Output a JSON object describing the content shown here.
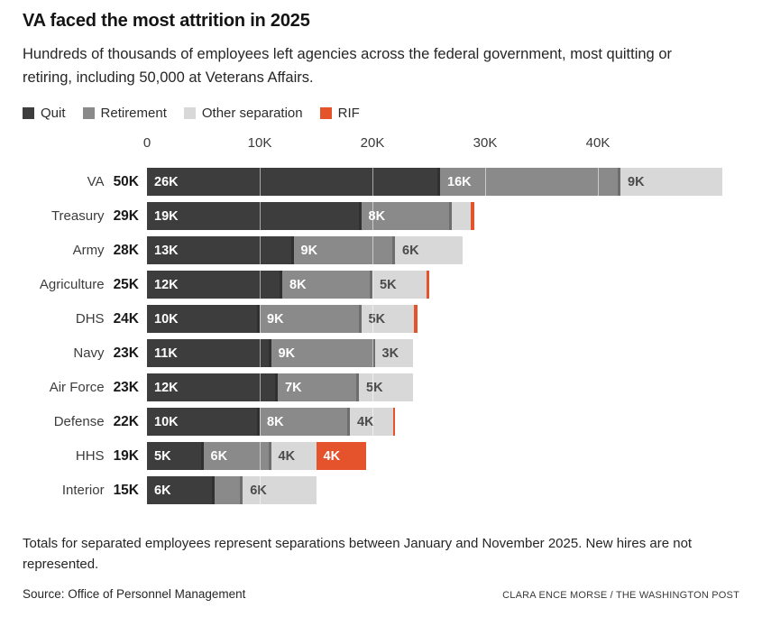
{
  "header": {
    "title": "VA faced the most attrition in 2025",
    "subtitle": "Hundreds of thousands of employees left agencies across the federal government, most quitting or retiring, including 50,000 at Veterans Affairs."
  },
  "colors": {
    "quit": "#3d3d3d",
    "retirement": "#8a8a8a",
    "other": "#d8d8d8",
    "rif": "#e4532c"
  },
  "legend": [
    {
      "label": "Quit",
      "type": "quit"
    },
    {
      "label": "Retirement",
      "type": "retirement"
    },
    {
      "label": "Other separation",
      "type": "other"
    },
    {
      "label": "RIF",
      "type": "rif"
    }
  ],
  "chart_data": {
    "type": "bar",
    "orientation": "horizontal",
    "stacked": true,
    "units": "employees (thousands)",
    "x_axis": {
      "ticks": [
        {
          "label": "0",
          "value": 0
        },
        {
          "label": "10K",
          "value": 10
        },
        {
          "label": "20K",
          "value": 20
        },
        {
          "label": "30K",
          "value": 30
        },
        {
          "label": "40K",
          "value": 40
        }
      ],
      "max_k": 51
    },
    "series_names": [
      "Quit",
      "Retirement",
      "Other separation",
      "RIF"
    ],
    "rows": [
      {
        "agency": "VA",
        "total_label": "50K",
        "segments": [
          {
            "type": "quit",
            "value": 26,
            "label": "26K"
          },
          {
            "type": "retirement",
            "value": 16,
            "label": "16K"
          },
          {
            "type": "other",
            "value": 9,
            "label": "9K"
          }
        ]
      },
      {
        "agency": "Treasury",
        "total_label": "29K",
        "segments": [
          {
            "type": "quit",
            "value": 19,
            "label": "19K"
          },
          {
            "type": "retirement",
            "value": 8,
            "label": "8K"
          },
          {
            "type": "other",
            "value": 1.7,
            "label": ""
          },
          {
            "type": "rif",
            "value": 0.3,
            "label": ""
          }
        ]
      },
      {
        "agency": "Army",
        "total_label": "28K",
        "segments": [
          {
            "type": "quit",
            "value": 13,
            "label": "13K"
          },
          {
            "type": "retirement",
            "value": 9,
            "label": "9K"
          },
          {
            "type": "other",
            "value": 6,
            "label": "6K"
          }
        ]
      },
      {
        "agency": "Agriculture",
        "total_label": "25K",
        "segments": [
          {
            "type": "quit",
            "value": 12,
            "label": "12K"
          },
          {
            "type": "retirement",
            "value": 8,
            "label": "8K"
          },
          {
            "type": "other",
            "value": 4.8,
            "label": "5K"
          },
          {
            "type": "rif",
            "value": 0.2,
            "label": ""
          }
        ]
      },
      {
        "agency": "DHS",
        "total_label": "24K",
        "segments": [
          {
            "type": "quit",
            "value": 10,
            "label": "10K"
          },
          {
            "type": "retirement",
            "value": 9,
            "label": "9K"
          },
          {
            "type": "other",
            "value": 4.7,
            "label": "5K"
          },
          {
            "type": "rif",
            "value": 0.3,
            "label": ""
          }
        ]
      },
      {
        "agency": "Navy",
        "total_label": "23K",
        "segments": [
          {
            "type": "quit",
            "value": 11,
            "label": "11K"
          },
          {
            "type": "retirement",
            "value": 9.2,
            "label": "9K"
          },
          {
            "type": "other",
            "value": 3.4,
            "label": "3K"
          }
        ]
      },
      {
        "agency": "Air Force",
        "total_label": "23K",
        "segments": [
          {
            "type": "quit",
            "value": 11.6,
            "label": "12K"
          },
          {
            "type": "retirement",
            "value": 7.2,
            "label": "7K"
          },
          {
            "type": "other",
            "value": 4.8,
            "label": "5K"
          }
        ]
      },
      {
        "agency": "Defense",
        "total_label": "22K",
        "segments": [
          {
            "type": "quit",
            "value": 10,
            "label": "10K"
          },
          {
            "type": "retirement",
            "value": 8,
            "label": "8K"
          },
          {
            "type": "other",
            "value": 3.8,
            "label": "4K"
          },
          {
            "type": "rif",
            "value": 0.2,
            "label": ""
          }
        ]
      },
      {
        "agency": "HHS",
        "total_label": "19K",
        "segments": [
          {
            "type": "quit",
            "value": 5,
            "label": "5K"
          },
          {
            "type": "retirement",
            "value": 6,
            "label": "6K"
          },
          {
            "type": "other",
            "value": 4,
            "label": "4K"
          },
          {
            "type": "rif",
            "value": 4.4,
            "label": "4K"
          }
        ]
      },
      {
        "agency": "Interior",
        "total_label": "15K",
        "segments": [
          {
            "type": "quit",
            "value": 6,
            "label": "6K"
          },
          {
            "type": "retirement",
            "value": 2.5,
            "label": ""
          },
          {
            "type": "other",
            "value": 6.5,
            "label": "6K"
          }
        ]
      }
    ]
  },
  "footer": {
    "note": "Totals for separated employees represent separations between January and November 2025. New hires are not represented.",
    "source": "Source: Office of Personnel Management",
    "credit": "CLARA ENCE MORSE / THE WASHINGTON POST"
  }
}
